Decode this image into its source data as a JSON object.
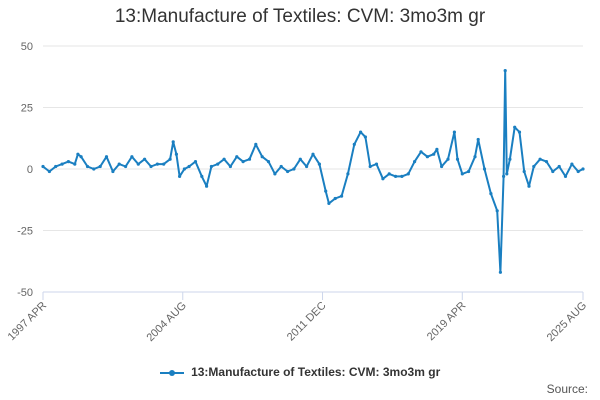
{
  "title": "13:Manufacture of Textiles: CVM: 3mo3m gr",
  "credits": "Source:",
  "colors": {
    "series": "#1a7fc1",
    "grid": "#e6e6e6",
    "axis_text": "#666666"
  },
  "chart_data": {
    "type": "line",
    "title": "13:Manufacture of Textiles: CVM: 3mo3m gr",
    "xlabel": "",
    "ylabel": "",
    "ylim": [
      -50,
      50
    ],
    "yticks": [
      "50",
      "25",
      "0",
      "-25",
      "-50"
    ],
    "xlim": [
      "1997-04",
      "2025-08"
    ],
    "xticks": [
      {
        "label": "1997 APR",
        "date": "1997-04"
      },
      {
        "label": "2004 AUG",
        "date": "2004-08"
      },
      {
        "label": "2011 DEC",
        "date": "2011-12"
      },
      {
        "label": "2019 APR",
        "date": "2019-04"
      },
      {
        "label": "2025 AUG",
        "date": "2025-08"
      }
    ],
    "grid": true,
    "legend": "bottom",
    "series": [
      {
        "name": "13:Manufacture of Textiles: CVM: 3mo3m gr",
        "points": [
          [
            "1997-04",
            1
          ],
          [
            "1997-08",
            -1
          ],
          [
            "1997-12",
            1
          ],
          [
            "1998-04",
            2
          ],
          [
            "1998-08",
            3
          ],
          [
            "1998-12",
            2
          ],
          [
            "1999-02",
            6
          ],
          [
            "1999-04",
            5
          ],
          [
            "1999-08",
            1
          ],
          [
            "1999-12",
            0
          ],
          [
            "2000-04",
            1
          ],
          [
            "2000-08",
            5
          ],
          [
            "2000-12",
            -1
          ],
          [
            "2001-04",
            2
          ],
          [
            "2001-08",
            1
          ],
          [
            "2001-12",
            5
          ],
          [
            "2002-04",
            2
          ],
          [
            "2002-08",
            4
          ],
          [
            "2002-12",
            1
          ],
          [
            "2003-04",
            2
          ],
          [
            "2003-08",
            2
          ],
          [
            "2003-12",
            4
          ],
          [
            "2004-02",
            11
          ],
          [
            "2004-04",
            6
          ],
          [
            "2004-06",
            -3
          ],
          [
            "2004-09",
            0
          ],
          [
            "2004-12",
            1
          ],
          [
            "2005-04",
            3
          ],
          [
            "2005-08",
            -3
          ],
          [
            "2005-11",
            -7
          ],
          [
            "2006-02",
            1
          ],
          [
            "2006-06",
            2
          ],
          [
            "2006-10",
            4
          ],
          [
            "2007-02",
            1
          ],
          [
            "2007-06",
            5
          ],
          [
            "2007-10",
            3
          ],
          [
            "2008-02",
            4
          ],
          [
            "2008-06",
            10
          ],
          [
            "2008-10",
            5
          ],
          [
            "2009-02",
            3
          ],
          [
            "2009-06",
            -2
          ],
          [
            "2009-10",
            1
          ],
          [
            "2010-02",
            -1
          ],
          [
            "2010-06",
            0
          ],
          [
            "2010-10",
            4
          ],
          [
            "2011-02",
            1
          ],
          [
            "2011-06",
            6
          ],
          [
            "2011-10",
            2
          ],
          [
            "2012-02",
            -9
          ],
          [
            "2012-04",
            -14
          ],
          [
            "2012-08",
            -12
          ],
          [
            "2012-12",
            -11
          ],
          [
            "2013-04",
            -2
          ],
          [
            "2013-08",
            10
          ],
          [
            "2013-12",
            15
          ],
          [
            "2014-03",
            13
          ],
          [
            "2014-06",
            1
          ],
          [
            "2014-10",
            2
          ],
          [
            "2015-02",
            -4
          ],
          [
            "2015-06",
            -2
          ],
          [
            "2015-10",
            -3
          ],
          [
            "2016-02",
            -3
          ],
          [
            "2016-06",
            -2
          ],
          [
            "2016-10",
            3
          ],
          [
            "2017-02",
            7
          ],
          [
            "2017-06",
            5
          ],
          [
            "2017-10",
            6
          ],
          [
            "2017-12",
            8
          ],
          [
            "2018-03",
            1
          ],
          [
            "2018-07",
            4
          ],
          [
            "2018-11",
            15
          ],
          [
            "2019-01",
            4
          ],
          [
            "2019-04",
            -2
          ],
          [
            "2019-08",
            -1
          ],
          [
            "2019-12",
            5
          ],
          [
            "2020-02",
            12
          ],
          [
            "2020-06",
            0
          ],
          [
            "2020-10",
            -10
          ],
          [
            "2021-02",
            -17
          ],
          [
            "2021-04",
            -42
          ],
          [
            "2021-06",
            -3
          ],
          [
            "2021-07",
            40
          ],
          [
            "2021-08",
            -2
          ],
          [
            "2021-10",
            4
          ],
          [
            "2022-01",
            17
          ],
          [
            "2022-04",
            15
          ],
          [
            "2022-07",
            -1
          ],
          [
            "2022-10",
            -7
          ],
          [
            "2023-01",
            1
          ],
          [
            "2023-05",
            4
          ],
          [
            "2023-09",
            3
          ],
          [
            "2024-01",
            -1
          ],
          [
            "2024-05",
            1
          ],
          [
            "2024-09",
            -3
          ],
          [
            "2025-01",
            2
          ],
          [
            "2025-05",
            -1
          ],
          [
            "2025-08",
            0
          ]
        ]
      }
    ]
  }
}
